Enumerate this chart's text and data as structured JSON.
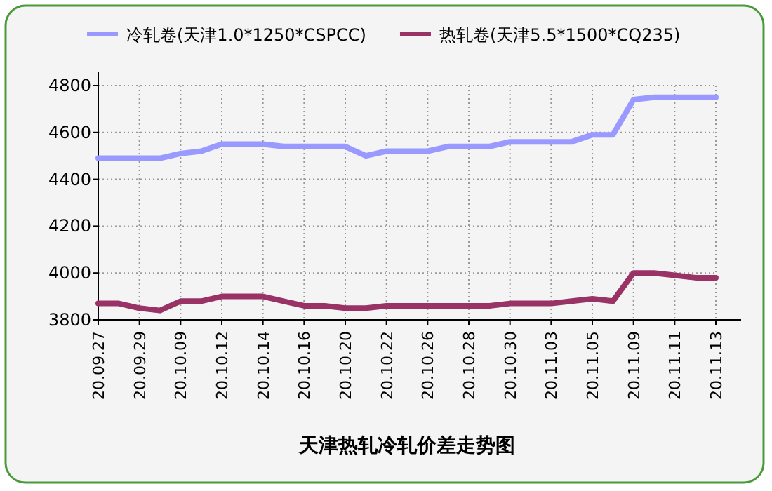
{
  "chart_data": {
    "type": "line",
    "title": "天津热轧冷轧价差走势图",
    "categories": [
      "20.09.27",
      null,
      "20.09.29",
      null,
      "20.10.09",
      null,
      "20.10.12",
      null,
      "20.10.14",
      null,
      "20.10.16",
      null,
      "20.10.20",
      null,
      "20.10.22",
      null,
      "20.10.26",
      null,
      "20.10.28",
      null,
      "20.10.30",
      null,
      "20.11.03",
      null,
      "20.11.05",
      null,
      "20.11.09",
      null,
      "20.11.11",
      null,
      "20.11.13"
    ],
    "series": [
      {
        "name": "冷轧卷(天津1.0*1250*CSPCC)",
        "color": "#9999ff",
        "values": [
          4490,
          4490,
          4490,
          4490,
          4510,
          4520,
          4550,
          4550,
          4550,
          4540,
          4540,
          4540,
          4540,
          4500,
          4520,
          4520,
          4520,
          4540,
          4540,
          4540,
          4560,
          4560,
          4560,
          4560,
          4590,
          4590,
          4740,
          4750,
          4750,
          4750,
          4750
        ]
      },
      {
        "name": "热轧卷(天津5.5*1500*CQ235)",
        "color": "#993366",
        "values": [
          3870,
          3870,
          3850,
          3840,
          3880,
          3880,
          3900,
          3900,
          3900,
          3880,
          3860,
          3860,
          3850,
          3850,
          3860,
          3860,
          3860,
          3860,
          3860,
          3860,
          3870,
          3870,
          3870,
          3880,
          3890,
          3880,
          4000,
          4000,
          3990,
          3980,
          3980
        ]
      }
    ],
    "ylim": [
      3800,
      4800
    ],
    "yticks": [
      3800,
      4000,
      4200,
      4400,
      4600,
      4800
    ],
    "grid": true,
    "legend": "top",
    "line_style": "solid"
  }
}
